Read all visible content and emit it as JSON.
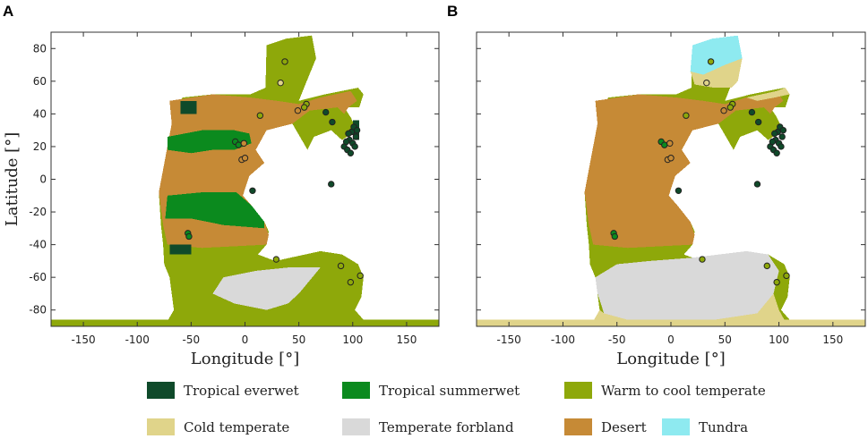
{
  "chart_data": [
    {
      "type": "heatmap",
      "panel": "A",
      "xlabel": "Longitude [°]",
      "ylabel": "Latitude [°]",
      "xlim": [
        -180,
        180
      ],
      "ylim": [
        -90,
        90
      ],
      "xticks": [
        -150,
        -100,
        -50,
        0,
        50,
        100,
        150
      ],
      "yticks": [
        -80,
        -60,
        -40,
        -20,
        0,
        20,
        40,
        60,
        80
      ],
      "grid": false
    },
    {
      "type": "heatmap",
      "panel": "B",
      "xlabel": "Longitude [°]",
      "ylabel": "",
      "xlim": [
        -180,
        180
      ],
      "ylim": [
        -90,
        90
      ],
      "xticks": [
        -150,
        -100,
        -50,
        0,
        50,
        100,
        150
      ],
      "yticks": [],
      "grid": false
    }
  ],
  "legend": [
    {
      "label": "Tropical everwet",
      "color": "#0f4a2a"
    },
    {
      "label": "Tropical summerwet",
      "color": "#0b8a1e"
    },
    {
      "label": "Warm to cool temperate",
      "color": "#8ea80a"
    },
    {
      "label": "Cold temperate",
      "color": "#e0d48a"
    },
    {
      "label": "Temperate forbland",
      "color": "#d9d9d9"
    },
    {
      "label": "Desert",
      "color": "#c68a36"
    },
    {
      "label": "Tundra",
      "color": "#8eeaf0"
    }
  ],
  "sites": [
    {
      "lon": 37,
      "lat": 72,
      "fill": "#8ea80a"
    },
    {
      "lon": 33,
      "lat": 59,
      "fill": "#e0d48a"
    },
    {
      "lon": 57,
      "lat": 46,
      "fill": "#8ea80a"
    },
    {
      "lon": 55,
      "lat": 44,
      "fill": "#8ea80a"
    },
    {
      "lon": 49,
      "lat": 42,
      "fill": "#c68a36"
    },
    {
      "lon": 14,
      "lat": 39,
      "fill": "#8ea80a"
    },
    {
      "lon": 75,
      "lat": 41,
      "fill": "#0f4a2a"
    },
    {
      "lon": 81,
      "lat": 35,
      "fill": "#0f4a2a"
    },
    {
      "lon": 92,
      "lat": 20,
      "fill": "#0f4a2a"
    },
    {
      "lon": 95,
      "lat": 18,
      "fill": "#0f4a2a"
    },
    {
      "lon": 97,
      "lat": 24,
      "fill": "#0f4a2a"
    },
    {
      "lon": 99,
      "lat": 29,
      "fill": "#0f4a2a"
    },
    {
      "lon": 101,
      "lat": 32,
      "fill": "#0f4a2a"
    },
    {
      "lon": 103,
      "lat": 26,
      "fill": "#0f4a2a"
    },
    {
      "lon": 100,
      "lat": 22,
      "fill": "#0f4a2a"
    },
    {
      "lon": 96,
      "lat": 28,
      "fill": "#0f4a2a"
    },
    {
      "lon": 94,
      "lat": 23,
      "fill": "#0f4a2a"
    },
    {
      "lon": 98,
      "lat": 16,
      "fill": "#0f4a2a"
    },
    {
      "lon": 102,
      "lat": 20,
      "fill": "#0f4a2a"
    },
    {
      "lon": 104,
      "lat": 30,
      "fill": "#0f4a2a"
    },
    {
      "lon": 80,
      "lat": -3,
      "fill": "#0f4a2a"
    },
    {
      "lon": 7,
      "lat": -7,
      "fill": "#0f4a2a"
    },
    {
      "lon": -9,
      "lat": 23,
      "fill": "#0b8a1e"
    },
    {
      "lon": -6,
      "lat": 21,
      "fill": "#0b8a1e"
    },
    {
      "lon": -1,
      "lat": 22,
      "fill": "#c68a36"
    },
    {
      "lon": -3,
      "lat": 12,
      "fill": "#c68a36"
    },
    {
      "lon": 0,
      "lat": 13,
      "fill": "#c68a36"
    },
    {
      "lon": -53,
      "lat": -33,
      "fill": "#0b8a1e"
    },
    {
      "lon": -52,
      "lat": -35,
      "fill": "#0b8a1e"
    },
    {
      "lon": 29,
      "lat": -49,
      "fill": "#8ea80a"
    },
    {
      "lon": 89,
      "lat": -53,
      "fill": "#8ea80a"
    },
    {
      "lon": 107,
      "lat": -59,
      "fill": "#8ea80a"
    },
    {
      "lon": 98,
      "lat": -63,
      "fill": "#8ea80a"
    }
  ]
}
